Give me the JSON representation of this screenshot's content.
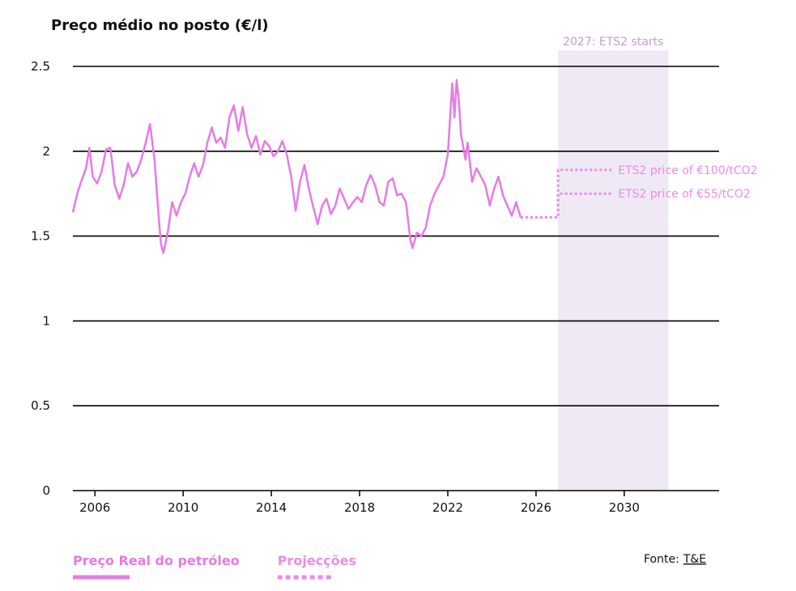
{
  "chart_data": {
    "type": "line",
    "title": "Preço médio no posto (€/l)",
    "xlim": [
      2005,
      2034.3
    ],
    "xticks": [
      2006,
      2010,
      2014,
      2018,
      2022,
      2026,
      2030
    ],
    "ylim": [
      0,
      2.5
    ],
    "yticks": [
      0,
      0.5,
      1,
      1.5,
      2,
      2.5
    ],
    "grid": true,
    "span": {
      "from": 2027,
      "to": 2032,
      "label": "2027: ETS2 starts",
      "color": "#efe9f5",
      "text_color": "#c99ad6"
    },
    "series": [
      {
        "name": "Preço Real do petróleo",
        "color": "#e67ae6",
        "style": "solid",
        "x": [
          2005.0,
          2005.2,
          2005.4,
          2005.6,
          2005.75,
          2005.9,
          2006.1,
          2006.3,
          2006.5,
          2006.7,
          2006.9,
          2007.1,
          2007.3,
          2007.5,
          2007.7,
          2007.9,
          2008.1,
          2008.3,
          2008.5,
          2008.7,
          2008.9,
          2009.0,
          2009.1,
          2009.3,
          2009.5,
          2009.7,
          2009.9,
          2010.1,
          2010.3,
          2010.5,
          2010.7,
          2010.9,
          2011.1,
          2011.3,
          2011.5,
          2011.7,
          2011.9,
          2012.1,
          2012.3,
          2012.5,
          2012.7,
          2012.9,
          2013.1,
          2013.3,
          2013.5,
          2013.7,
          2013.9,
          2014.1,
          2014.3,
          2014.5,
          2014.7,
          2014.9,
          2015.1,
          2015.3,
          2015.5,
          2015.7,
          2015.9,
          2016.1,
          2016.3,
          2016.5,
          2016.7,
          2016.9,
          2017.1,
          2017.3,
          2017.5,
          2017.7,
          2017.9,
          2018.1,
          2018.3,
          2018.5,
          2018.7,
          2018.9,
          2019.1,
          2019.3,
          2019.5,
          2019.7,
          2019.9,
          2020.1,
          2020.3,
          2020.4,
          2020.6,
          2020.8,
          2021.0,
          2021.2,
          2021.4,
          2021.6,
          2021.8,
          2022.0,
          2022.2,
          2022.3,
          2022.4,
          2022.5,
          2022.6,
          2022.8,
          2022.9,
          2023.1,
          2023.3,
          2023.5,
          2023.7,
          2023.9,
          2024.1,
          2024.3,
          2024.5,
          2024.7,
          2024.9,
          2025.1,
          2025.3
        ],
        "values": [
          1.64,
          1.75,
          1.83,
          1.9,
          2.02,
          1.85,
          1.81,
          1.88,
          2.01,
          2.02,
          1.8,
          1.72,
          1.8,
          1.93,
          1.85,
          1.88,
          1.95,
          2.05,
          2.16,
          1.95,
          1.6,
          1.45,
          1.4,
          1.52,
          1.7,
          1.62,
          1.7,
          1.75,
          1.85,
          1.93,
          1.85,
          1.92,
          2.05,
          2.14,
          2.05,
          2.08,
          2.02,
          2.2,
          2.27,
          2.12,
          2.26,
          2.1,
          2.02,
          2.09,
          1.98,
          2.06,
          2.03,
          1.97,
          2.0,
          2.06,
          1.98,
          1.85,
          1.65,
          1.82,
          1.92,
          1.78,
          1.67,
          1.57,
          1.68,
          1.72,
          1.63,
          1.68,
          1.78,
          1.72,
          1.66,
          1.7,
          1.73,
          1.7,
          1.8,
          1.86,
          1.8,
          1.7,
          1.68,
          1.82,
          1.84,
          1.74,
          1.75,
          1.7,
          1.48,
          1.43,
          1.52,
          1.5,
          1.55,
          1.68,
          1.75,
          1.8,
          1.85,
          1.98,
          2.4,
          2.2,
          2.42,
          2.3,
          2.1,
          1.95,
          2.05,
          1.82,
          1.9,
          1.85,
          1.8,
          1.68,
          1.78,
          1.85,
          1.74,
          1.68,
          1.62,
          1.7,
          1.61
        ]
      },
      {
        "name": "ETS2 price of €100/tCO2",
        "color": "#ea8cea",
        "style": "dotted",
        "x": [
          2025.3,
          2027,
          2027,
          2029.5
        ],
        "values": [
          1.61,
          1.61,
          1.89,
          1.89
        ]
      },
      {
        "name": "ETS2 price of €55/tCO2",
        "color": "#ea8cea",
        "style": "dotted",
        "x": [
          2025.3,
          2027,
          2027,
          2029.5
        ],
        "values": [
          1.61,
          1.61,
          1.75,
          1.75
        ]
      }
    ],
    "legend": [
      {
        "label": "Preço Real do petróleo",
        "color": "#e67ae6",
        "style": "solid"
      },
      {
        "label": "Projecções",
        "color": "#ea8cea",
        "style": "dotted"
      }
    ],
    "source": {
      "prefix": "Fonte:",
      "name": "T&E"
    }
  }
}
